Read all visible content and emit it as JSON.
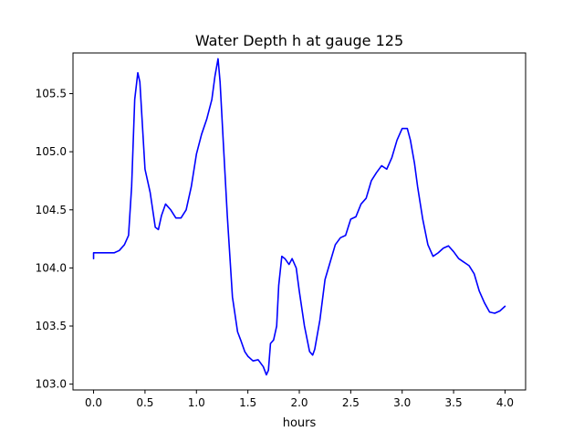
{
  "chart_data": {
    "type": "line",
    "title": "Water Depth h at gauge 125",
    "xlabel": "hours",
    "ylabel": "",
    "xlim": [
      -0.2,
      4.2
    ],
    "ylim": [
      102.95,
      105.85
    ],
    "xticks": [
      0.0,
      0.5,
      1.0,
      1.5,
      2.0,
      2.5,
      3.0,
      3.5,
      4.0
    ],
    "xtick_labels": [
      "0.0",
      "0.5",
      "1.0",
      "1.5",
      "2.0",
      "2.5",
      "3.0",
      "3.5",
      "4.0"
    ],
    "yticks": [
      103.0,
      103.5,
      104.0,
      104.5,
      105.0,
      105.5
    ],
    "ytick_labels": [
      "103.0",
      "103.5",
      "104.0",
      "104.5",
      "105.0",
      "105.5"
    ],
    "grid": false,
    "legend": "none",
    "series": [
      {
        "color": "#0000ff",
        "x": [
          0.0,
          0.0,
          0.05,
          0.1,
          0.15,
          0.2,
          0.25,
          0.3,
          0.34,
          0.37,
          0.4,
          0.43,
          0.45,
          0.47,
          0.5,
          0.55,
          0.6,
          0.63,
          0.66,
          0.7,
          0.75,
          0.8,
          0.85,
          0.9,
          0.95,
          1.0,
          1.05,
          1.1,
          1.15,
          1.18,
          1.21,
          1.23,
          1.26,
          1.3,
          1.35,
          1.4,
          1.43,
          1.47,
          1.5,
          1.55,
          1.6,
          1.65,
          1.68,
          1.7,
          1.72,
          1.75,
          1.78,
          1.8,
          1.83,
          1.86,
          1.9,
          1.93,
          1.97,
          2.0,
          2.05,
          2.1,
          2.13,
          2.15,
          2.2,
          2.25,
          2.3,
          2.35,
          2.4,
          2.45,
          2.5,
          2.55,
          2.6,
          2.65,
          2.7,
          2.75,
          2.8,
          2.85,
          2.9,
          2.95,
          3.0,
          3.05,
          3.08,
          3.12,
          3.15,
          3.2,
          3.25,
          3.3,
          3.35,
          3.4,
          3.45,
          3.5,
          3.55,
          3.6,
          3.65,
          3.7,
          3.75,
          3.8,
          3.85,
          3.9,
          3.95,
          4.0
        ],
        "y": [
          104.08,
          104.13,
          104.13,
          104.13,
          104.13,
          104.13,
          104.15,
          104.2,
          104.28,
          104.7,
          105.45,
          105.68,
          105.6,
          105.3,
          104.85,
          104.65,
          104.35,
          104.33,
          104.45,
          104.55,
          104.5,
          104.43,
          104.43,
          104.5,
          104.7,
          104.98,
          105.15,
          105.28,
          105.45,
          105.65,
          105.8,
          105.6,
          105.1,
          104.45,
          103.75,
          103.45,
          103.38,
          103.28,
          103.24,
          103.2,
          103.21,
          103.15,
          103.08,
          103.12,
          103.35,
          103.38,
          103.5,
          103.85,
          104.1,
          104.08,
          104.03,
          104.08,
          104.0,
          103.8,
          103.5,
          103.28,
          103.25,
          103.3,
          103.55,
          103.9,
          104.05,
          104.2,
          104.26,
          104.28,
          104.42,
          104.44,
          104.55,
          104.6,
          104.75,
          104.82,
          104.88,
          104.85,
          104.95,
          105.1,
          105.2,
          105.2,
          105.1,
          104.9,
          104.7,
          104.42,
          104.2,
          104.1,
          104.13,
          104.17,
          104.19,
          104.14,
          104.08,
          104.05,
          104.02,
          103.95,
          103.8,
          103.7,
          103.62,
          103.61,
          103.63,
          103.67
        ]
      }
    ]
  }
}
